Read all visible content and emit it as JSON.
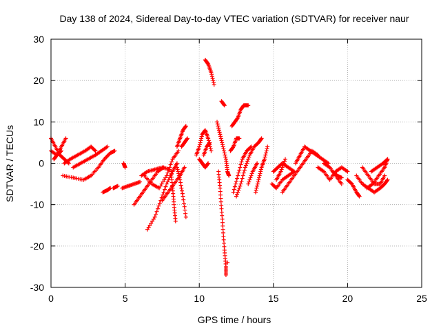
{
  "chart_data": {
    "type": "scatter",
    "title": "Day 138 of 2024, Sidereal Day-to-day VTEC variation (SDTVAR) for receiver naur",
    "xlabel": "GPS time / hours",
    "ylabel": "SDTVAR / TECUs",
    "xlim": [
      0,
      25
    ],
    "ylim": [
      -30,
      30
    ],
    "xticks": [
      "0",
      "5",
      "10",
      "15",
      "20",
      "25"
    ],
    "yticks": [
      "30",
      "20",
      "10",
      "0",
      "-10",
      "-20",
      "-30"
    ],
    "grid": true,
    "marker": "+",
    "series_color": "#ff0000",
    "tracks": [
      [
        [
          0.0,
          6
        ],
        [
          0.3,
          4
        ],
        [
          0.6,
          2
        ],
        [
          0.9,
          1
        ],
        [
          1.2,
          0
        ]
      ],
      [
        [
          0.0,
          3
        ],
        [
          0.4,
          2
        ],
        [
          0.7,
          4
        ],
        [
          1.0,
          6
        ]
      ],
      [
        [
          0.2,
          1
        ],
        [
          0.4,
          2
        ],
        [
          0.7,
          3
        ]
      ],
      [
        [
          0.8,
          -3
        ],
        [
          1.5,
          -3.5
        ],
        [
          2.2,
          -4
        ],
        [
          2.7,
          -3
        ],
        [
          3.2,
          -1
        ],
        [
          3.6,
          1
        ],
        [
          4.0,
          2.5
        ],
        [
          4.3,
          3
        ]
      ],
      [
        [
          0.9,
          0
        ],
        [
          1.3,
          1
        ],
        [
          1.8,
          2
        ],
        [
          2.3,
          3
        ],
        [
          2.7,
          4
        ],
        [
          3.0,
          3
        ]
      ],
      [
        [
          1.5,
          -1
        ],
        [
          2.0,
          0
        ],
        [
          2.5,
          1
        ],
        [
          3.0,
          2
        ],
        [
          3.4,
          3
        ],
        [
          3.8,
          4
        ]
      ],
      [
        [
          3.5,
          -7
        ],
        [
          3.8,
          -6.5
        ],
        [
          4.0,
          -6
        ]
      ],
      [
        [
          4.2,
          -6
        ],
        [
          4.5,
          -5.5
        ]
      ],
      [
        [
          4.9,
          0
        ],
        [
          5.0,
          -1
        ]
      ],
      [
        [
          4.8,
          -6
        ],
        [
          5.2,
          -5.5
        ],
        [
          5.6,
          -5
        ],
        [
          6.0,
          -4.5
        ]
      ],
      [
        [
          5.6,
          -10
        ],
        [
          6.0,
          -8
        ],
        [
          6.4,
          -6
        ],
        [
          6.8,
          -4
        ],
        [
          7.2,
          -2
        ],
        [
          7.6,
          -1
        ]
      ],
      [
        [
          6.1,
          -3
        ],
        [
          6.5,
          -2
        ],
        [
          7.0,
          -1.5
        ],
        [
          7.5,
          -1
        ],
        [
          8.0,
          -1.5
        ]
      ],
      [
        [
          6.5,
          -16
        ],
        [
          7.0,
          -13
        ],
        [
          7.4,
          -9
        ],
        [
          7.8,
          -5
        ],
        [
          8.2,
          -2
        ],
        [
          8.5,
          0
        ]
      ],
      [
        [
          6.3,
          -3
        ],
        [
          6.8,
          -5
        ],
        [
          7.3,
          -6
        ],
        [
          7.8,
          -3
        ],
        [
          8.2,
          1
        ],
        [
          8.6,
          3
        ]
      ],
      [
        [
          7.5,
          -9
        ],
        [
          7.9,
          -7
        ],
        [
          8.3,
          -5
        ],
        [
          8.7,
          -3
        ],
        [
          9.0,
          -1
        ]
      ],
      [
        [
          8.1,
          -2
        ],
        [
          8.2,
          -6
        ],
        [
          8.3,
          -10
        ],
        [
          8.4,
          -14
        ]
      ],
      [
        [
          8.5,
          -1
        ],
        [
          8.7,
          -4
        ],
        [
          8.9,
          -8
        ],
        [
          9.1,
          -13
        ]
      ],
      [
        [
          8.5,
          4
        ],
        [
          8.7,
          6
        ],
        [
          8.9,
          8
        ],
        [
          9.1,
          9
        ]
      ],
      [
        [
          8.8,
          4
        ],
        [
          9.0,
          5
        ],
        [
          9.2,
          6
        ]
      ],
      [
        [
          9.8,
          2
        ],
        [
          10.0,
          4
        ],
        [
          10.2,
          7
        ],
        [
          10.4,
          8
        ],
        [
          10.6,
          6
        ],
        [
          10.8,
          3
        ]
      ],
      [
        [
          10.0,
          1
        ],
        [
          10.2,
          0
        ],
        [
          10.4,
          -1
        ],
        [
          10.6,
          0
        ]
      ],
      [
        [
          10.3,
          2
        ],
        [
          10.5,
          4
        ],
        [
          10.7,
          5
        ]
      ],
      [
        [
          10.4,
          25
        ],
        [
          10.6,
          24
        ],
        [
          10.8,
          22
        ],
        [
          11.0,
          19
        ]
      ],
      [
        [
          11.2,
          10
        ],
        [
          11.4,
          7
        ],
        [
          11.6,
          4
        ],
        [
          11.8,
          1
        ],
        [
          11.9,
          -2
        ],
        [
          12.0,
          -3
        ]
      ],
      [
        [
          11.3,
          -2
        ],
        [
          11.4,
          -6
        ],
        [
          11.5,
          -11
        ],
        [
          11.6,
          -16
        ],
        [
          11.7,
          -21
        ],
        [
          11.8,
          -25
        ],
        [
          11.8,
          -27
        ]
      ],
      [
        [
          11.9,
          -24
        ]
      ],
      [
        [
          11.5,
          15
        ],
        [
          11.7,
          14
        ]
      ],
      [
        [
          12.2,
          9
        ],
        [
          12.4,
          10
        ],
        [
          12.6,
          11
        ],
        [
          12.8,
          13
        ],
        [
          13.0,
          14
        ],
        [
          13.3,
          14
        ]
      ],
      [
        [
          12.1,
          3
        ],
        [
          12.3,
          4
        ],
        [
          12.5,
          6
        ],
        [
          12.7,
          6
        ]
      ],
      [
        [
          12.3,
          -7
        ],
        [
          12.6,
          -3
        ],
        [
          12.9,
          1
        ],
        [
          13.2,
          3
        ],
        [
          13.5,
          4
        ]
      ],
      [
        [
          12.5,
          -8
        ],
        [
          12.8,
          -5
        ],
        [
          13.1,
          -1
        ],
        [
          13.4,
          2
        ],
        [
          13.7,
          4
        ],
        [
          14.0,
          5
        ],
        [
          14.2,
          6
        ]
      ],
      [
        [
          13.3,
          -5
        ],
        [
          13.6,
          -2
        ],
        [
          13.9,
          0
        ]
      ],
      [
        [
          13.8,
          -7
        ],
        [
          14.0,
          -4
        ],
        [
          14.2,
          -1
        ],
        [
          14.4,
          1
        ],
        [
          14.6,
          4
        ]
      ],
      [
        [
          15.0,
          -2
        ],
        [
          15.3,
          -1
        ],
        [
          15.6,
          0
        ],
        [
          16.0,
          -1
        ],
        [
          16.4,
          -2
        ]
      ],
      [
        [
          14.9,
          -5
        ],
        [
          15.2,
          -6
        ],
        [
          15.6,
          -4
        ],
        [
          16.0,
          -3
        ],
        [
          16.4,
          -2
        ]
      ],
      [
        [
          15.2,
          -4
        ],
        [
          15.5,
          -2
        ],
        [
          15.8,
          1
        ]
      ],
      [
        [
          15.6,
          -7
        ],
        [
          16.0,
          -5
        ],
        [
          16.4,
          -3
        ],
        [
          16.8,
          -1
        ]
      ],
      [
        [
          16.5,
          0
        ],
        [
          16.8,
          2
        ],
        [
          17.1,
          4
        ],
        [
          17.5,
          3
        ],
        [
          17.9,
          2
        ],
        [
          18.3,
          1
        ],
        [
          18.7,
          0
        ]
      ],
      [
        [
          16.8,
          -1
        ],
        [
          17.2,
          1
        ],
        [
          17.6,
          3
        ],
        [
          18.0,
          2
        ]
      ],
      [
        [
          18.0,
          -1
        ],
        [
          18.4,
          -2
        ],
        [
          18.8,
          -4
        ],
        [
          19.2,
          -2
        ],
        [
          19.6,
          -1
        ],
        [
          20.0,
          -2
        ]
      ],
      [
        [
          18.4,
          0
        ],
        [
          18.8,
          -1
        ],
        [
          19.2,
          -3
        ],
        [
          19.6,
          -5
        ]
      ],
      [
        [
          19.0,
          -2
        ],
        [
          19.3,
          -3
        ],
        [
          19.6,
          -3.5
        ]
      ],
      [
        [
          20.0,
          -4
        ],
        [
          20.3,
          -5
        ],
        [
          20.6,
          -7
        ],
        [
          20.8,
          -8
        ]
      ],
      [
        [
          20.6,
          -3
        ],
        [
          21.0,
          -5
        ],
        [
          21.4,
          -6
        ],
        [
          21.8,
          -7
        ],
        [
          22.2,
          -6
        ],
        [
          22.5,
          -5
        ],
        [
          22.7,
          -4
        ]
      ],
      [
        [
          21.0,
          -1
        ],
        [
          21.4,
          -3
        ],
        [
          21.8,
          -5
        ],
        [
          22.2,
          -5
        ],
        [
          22.5,
          -3
        ]
      ],
      [
        [
          21.3,
          -6
        ],
        [
          21.7,
          -5
        ],
        [
          22.1,
          -3
        ],
        [
          22.5,
          -1
        ],
        [
          22.7,
          1
        ]
      ],
      [
        [
          21.6,
          -2
        ],
        [
          22.0,
          -1
        ],
        [
          22.4,
          0
        ],
        [
          22.7,
          1
        ]
      ]
    ]
  }
}
